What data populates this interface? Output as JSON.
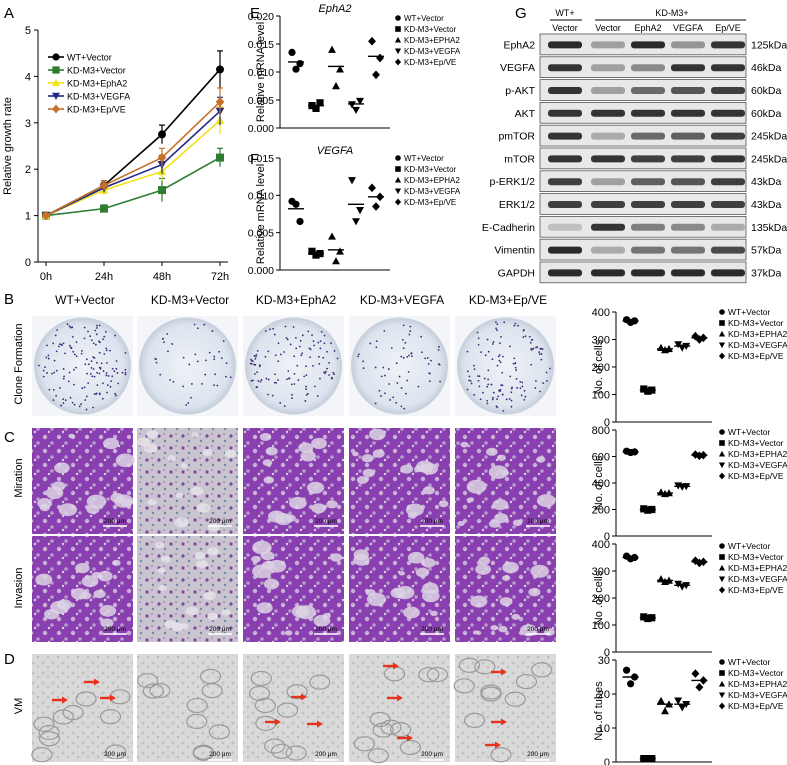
{
  "panel_letters": [
    "A",
    "B",
    "C",
    "D",
    "E",
    "F",
    "G"
  ],
  "sample_headers": [
    "WT+Vector",
    "KD-M3+Vector",
    "KD-M3+EphA2",
    "KD-M3+VEGFA",
    "KD-M3+Ep/VE"
  ],
  "row_labels": {
    "clone": "Clone Formation",
    "migration": "Miration",
    "invasion": "Invasion",
    "vm": "VM"
  },
  "scale_bar_label": "200 μm",
  "colors": {
    "purple": "#8a3fb0",
    "arrow": "#e8321e"
  },
  "chart_data": [
    {
      "id": "A",
      "type": "line",
      "ylabel": "Relative growth rate",
      "x": [
        "0h",
        "24h",
        "48h",
        "72h"
      ],
      "ylim": [
        0,
        5
      ],
      "yticks": [
        0,
        1,
        2,
        3,
        4,
        5
      ],
      "series": [
        {
          "name": "WT+Vector",
          "color": "#000000",
          "marker": "circle",
          "values": [
            1.0,
            1.65,
            2.75,
            4.15
          ],
          "err": [
            0.05,
            0.1,
            0.2,
            0.4
          ]
        },
        {
          "name": "KD-M3+Vector",
          "color": "#2e7d32",
          "marker": "square",
          "values": [
            1.0,
            1.15,
            1.55,
            2.25
          ],
          "err": [
            0.05,
            0.08,
            0.25,
            0.2
          ]
        },
        {
          "name": "KD-M3+EphA2",
          "color": "#f2e21b",
          "marker": "triangle",
          "values": [
            1.0,
            1.55,
            1.95,
            3.05
          ],
          "err": [
            0.05,
            0.1,
            0.2,
            0.3
          ]
        },
        {
          "name": "KD-M3+VEGFA",
          "color": "#1f2a80",
          "marker": "triangle-down",
          "values": [
            1.0,
            1.6,
            2.1,
            3.25
          ],
          "err": [
            0.05,
            0.1,
            0.2,
            0.3
          ]
        },
        {
          "name": "KD-M3+Ep/VE",
          "color": "#c8702a",
          "marker": "diamond",
          "values": [
            1.0,
            1.65,
            2.25,
            3.45
          ],
          "err": [
            0.05,
            0.1,
            0.2,
            0.3
          ]
        }
      ]
    },
    {
      "id": "E",
      "type": "scatter",
      "title": "EphA2",
      "ylabel": "Relative mRNA level",
      "ylim": [
        0,
        0.02
      ],
      "yticks": [
        "0.000",
        "0.005",
        "0.010",
        "0.015",
        "0.020"
      ],
      "ytick_values": [
        0,
        0.005,
        0.01,
        0.015,
        0.02
      ],
      "legend": [
        "WT+Vector",
        "KD-M3+Vector",
        "KD-M3+EPHA2",
        "KD-M3+VEGFA",
        "KD-M3+Ep/VE"
      ],
      "groups": [
        {
          "marker": "circle",
          "points": [
            0.0135,
            0.0105,
            0.0115
          ],
          "mean": 0.0118
        },
        {
          "marker": "square",
          "points": [
            0.004,
            0.0035,
            0.0045
          ],
          "mean": 0.004
        },
        {
          "marker": "triangle",
          "points": [
            0.014,
            0.0075,
            0.0105
          ],
          "mean": 0.011
        },
        {
          "marker": "triangle-down",
          "points": [
            0.0042,
            0.0032,
            0.0048
          ],
          "mean": 0.0043
        },
        {
          "marker": "diamond",
          "points": [
            0.0155,
            0.0095,
            0.0125
          ],
          "mean": 0.0128
        }
      ]
    },
    {
      "id": "F",
      "type": "scatter",
      "title": "VEGFA",
      "ylabel": "Relative mRNA level",
      "ylim": [
        0,
        0.015
      ],
      "yticks": [
        "0.000",
        "0.005",
        "0.010",
        "0.015"
      ],
      "ytick_values": [
        0,
        0.005,
        0.01,
        0.015
      ],
      "legend": [
        "WT+Vector",
        "KD-M3+Vector",
        "KD-M3+EPHA2",
        "KD-M3+VEGFA",
        "KD-M3+Ep/VE"
      ],
      "groups": [
        {
          "marker": "circle",
          "points": [
            0.0092,
            0.0088,
            0.0065
          ],
          "mean": 0.0082
        },
        {
          "marker": "square",
          "points": [
            0.0025,
            0.002,
            0.0022
          ],
          "mean": 0.0022
        },
        {
          "marker": "triangle",
          "points": [
            0.0045,
            0.0012,
            0.0025
          ],
          "mean": 0.0027
        },
        {
          "marker": "triangle-down",
          "points": [
            0.012,
            0.0065,
            0.008
          ],
          "mean": 0.0088
        },
        {
          "marker": "diamond",
          "points": [
            0.011,
            0.0085,
            0.0098
          ],
          "mean": 0.0098
        }
      ]
    },
    {
      "id": "B",
      "type": "scatter",
      "ylabel": "No. of cells",
      "ylim": [
        0,
        400
      ],
      "yticks": [
        "0",
        "100",
        "200",
        "300",
        "400"
      ],
      "ytick_values": [
        0,
        100,
        200,
        300,
        400
      ],
      "legend": [
        "WT+Vector",
        "KD-M3+Vector",
        "KD-M3+EPHA2",
        "KD-M3+VEGFA",
        "KD-M3+Ep/VE"
      ],
      "groups": [
        {
          "marker": "circle",
          "points": [
            372,
            362,
            368
          ],
          "mean": 367
        },
        {
          "marker": "square",
          "points": [
            120,
            112,
            116
          ],
          "mean": 116
        },
        {
          "marker": "triangle",
          "points": [
            270,
            262,
            266
          ],
          "mean": 266
        },
        {
          "marker": "triangle-down",
          "points": [
            282,
            270,
            276
          ],
          "mean": 276
        },
        {
          "marker": "diamond",
          "points": [
            312,
            300,
            306
          ],
          "mean": 306
        }
      ]
    },
    {
      "id": "C1",
      "type": "scatter",
      "ylabel": "No. of cells",
      "ylim": [
        0,
        800
      ],
      "yticks": [
        "0",
        "200",
        "400",
        "600",
        "800"
      ],
      "ytick_values": [
        0,
        200,
        400,
        600,
        800
      ],
      "legend": [
        "WT+Vector",
        "KD-M3+Vector",
        "KD-M3+EPHA2",
        "KD-M3+VEGFA",
        "KD-M3+Ep/VE"
      ],
      "groups": [
        {
          "marker": "circle",
          "points": [
            640,
            630,
            635
          ],
          "mean": 635
        },
        {
          "marker": "square",
          "points": [
            205,
            195,
            200
          ],
          "mean": 200
        },
        {
          "marker": "triangle",
          "points": [
            330,
            318,
            324
          ],
          "mean": 324
        },
        {
          "marker": "triangle-down",
          "points": [
            380,
            370,
            375
          ],
          "mean": 375
        },
        {
          "marker": "diamond",
          "points": [
            615,
            605,
            610
          ],
          "mean": 610
        }
      ]
    },
    {
      "id": "C2",
      "type": "scatter",
      "ylabel": "No .of cells",
      "ylim": [
        0,
        400
      ],
      "yticks": [
        "0",
        "100",
        "200",
        "300",
        "400"
      ],
      "ytick_values": [
        0,
        100,
        200,
        300,
        400
      ],
      "legend": [
        "WT+Vector",
        "KD-M3+Vector",
        "KD-M3+EPHA2",
        "KD-M3+VEGFA",
        "KD-M3+Ep/VE"
      ],
      "groups": [
        {
          "marker": "circle",
          "points": [
            355,
            345,
            350
          ],
          "mean": 350
        },
        {
          "marker": "square",
          "points": [
            130,
            124,
            127
          ],
          "mean": 127
        },
        {
          "marker": "triangle",
          "points": [
            270,
            260,
            265
          ],
          "mean": 265
        },
        {
          "marker": "triangle-down",
          "points": [
            252,
            242,
            247
          ],
          "mean": 247
        },
        {
          "marker": "diamond",
          "points": [
            338,
            330,
            334
          ],
          "mean": 334
        }
      ]
    },
    {
      "id": "D",
      "type": "scatter",
      "ylabel": "No .of tubes",
      "ylim": [
        0,
        30
      ],
      "yticks": [
        "0",
        "10",
        "20",
        "30"
      ],
      "ytick_values": [
        0,
        10,
        20,
        30
      ],
      "legend": [
        "WT+Vector",
        "KD-M3+Vector",
        "KD-M3+EPHA2",
        "KD-M3+VEGFA",
        "KD-M3+Ep/VE"
      ],
      "groups": [
        {
          "marker": "circle",
          "points": [
            27,
            23,
            25
          ],
          "mean": 25
        },
        {
          "marker": "square",
          "points": [
            1,
            1,
            1
          ],
          "mean": 1
        },
        {
          "marker": "triangle",
          "points": [
            18,
            15,
            17
          ],
          "mean": 17
        },
        {
          "marker": "triangle-down",
          "points": [
            18,
            16,
            17
          ],
          "mean": 17
        },
        {
          "marker": "diamond",
          "points": [
            26,
            22,
            24
          ],
          "mean": 24
        }
      ]
    }
  ],
  "blot": {
    "header_wt": "WT+",
    "header_kd": "KD-M3+",
    "lanes": [
      "Vector",
      "Vector",
      "EphA2",
      "VEGFA",
      "Ep/VE"
    ],
    "rows": [
      {
        "protein": "EphA2",
        "kda": "125kDa",
        "intensity": [
          0.9,
          0.35,
          0.9,
          0.4,
          0.85
        ]
      },
      {
        "protein": "VEGFA",
        "kda": "46kDa",
        "intensity": [
          0.85,
          0.35,
          0.45,
          0.85,
          0.85
        ]
      },
      {
        "protein": "p-AKT",
        "kda": "60kDa",
        "intensity": [
          0.85,
          0.35,
          0.6,
          0.7,
          0.8
        ]
      },
      {
        "protein": "AKT",
        "kda": "60kDa",
        "intensity": [
          0.85,
          0.85,
          0.85,
          0.85,
          0.85
        ]
      },
      {
        "protein": "pmTOR",
        "kda": "245kDa",
        "intensity": [
          0.85,
          0.3,
          0.6,
          0.65,
          0.8
        ]
      },
      {
        "protein": "mTOR",
        "kda": "245kDa",
        "intensity": [
          0.85,
          0.85,
          0.8,
          0.8,
          0.85
        ]
      },
      {
        "protein": "p-ERK1/2",
        "kda": "43kDa",
        "intensity": [
          0.8,
          0.35,
          0.65,
          0.7,
          0.8
        ]
      },
      {
        "protein": "ERK1/2",
        "kda": "43kDa",
        "intensity": [
          0.8,
          0.8,
          0.8,
          0.8,
          0.8
        ]
      },
      {
        "protein": "E-Cadherin",
        "kda": "135kDa",
        "intensity": [
          0.2,
          0.85,
          0.5,
          0.45,
          0.3
        ]
      },
      {
        "protein": "Vimentin",
        "kda": "57kDa",
        "intensity": [
          0.9,
          0.3,
          0.55,
          0.55,
          0.75
        ]
      },
      {
        "protein": "GAPDH",
        "kda": "37kDa",
        "intensity": [
          0.9,
          0.9,
          0.9,
          0.9,
          0.9
        ]
      }
    ]
  }
}
